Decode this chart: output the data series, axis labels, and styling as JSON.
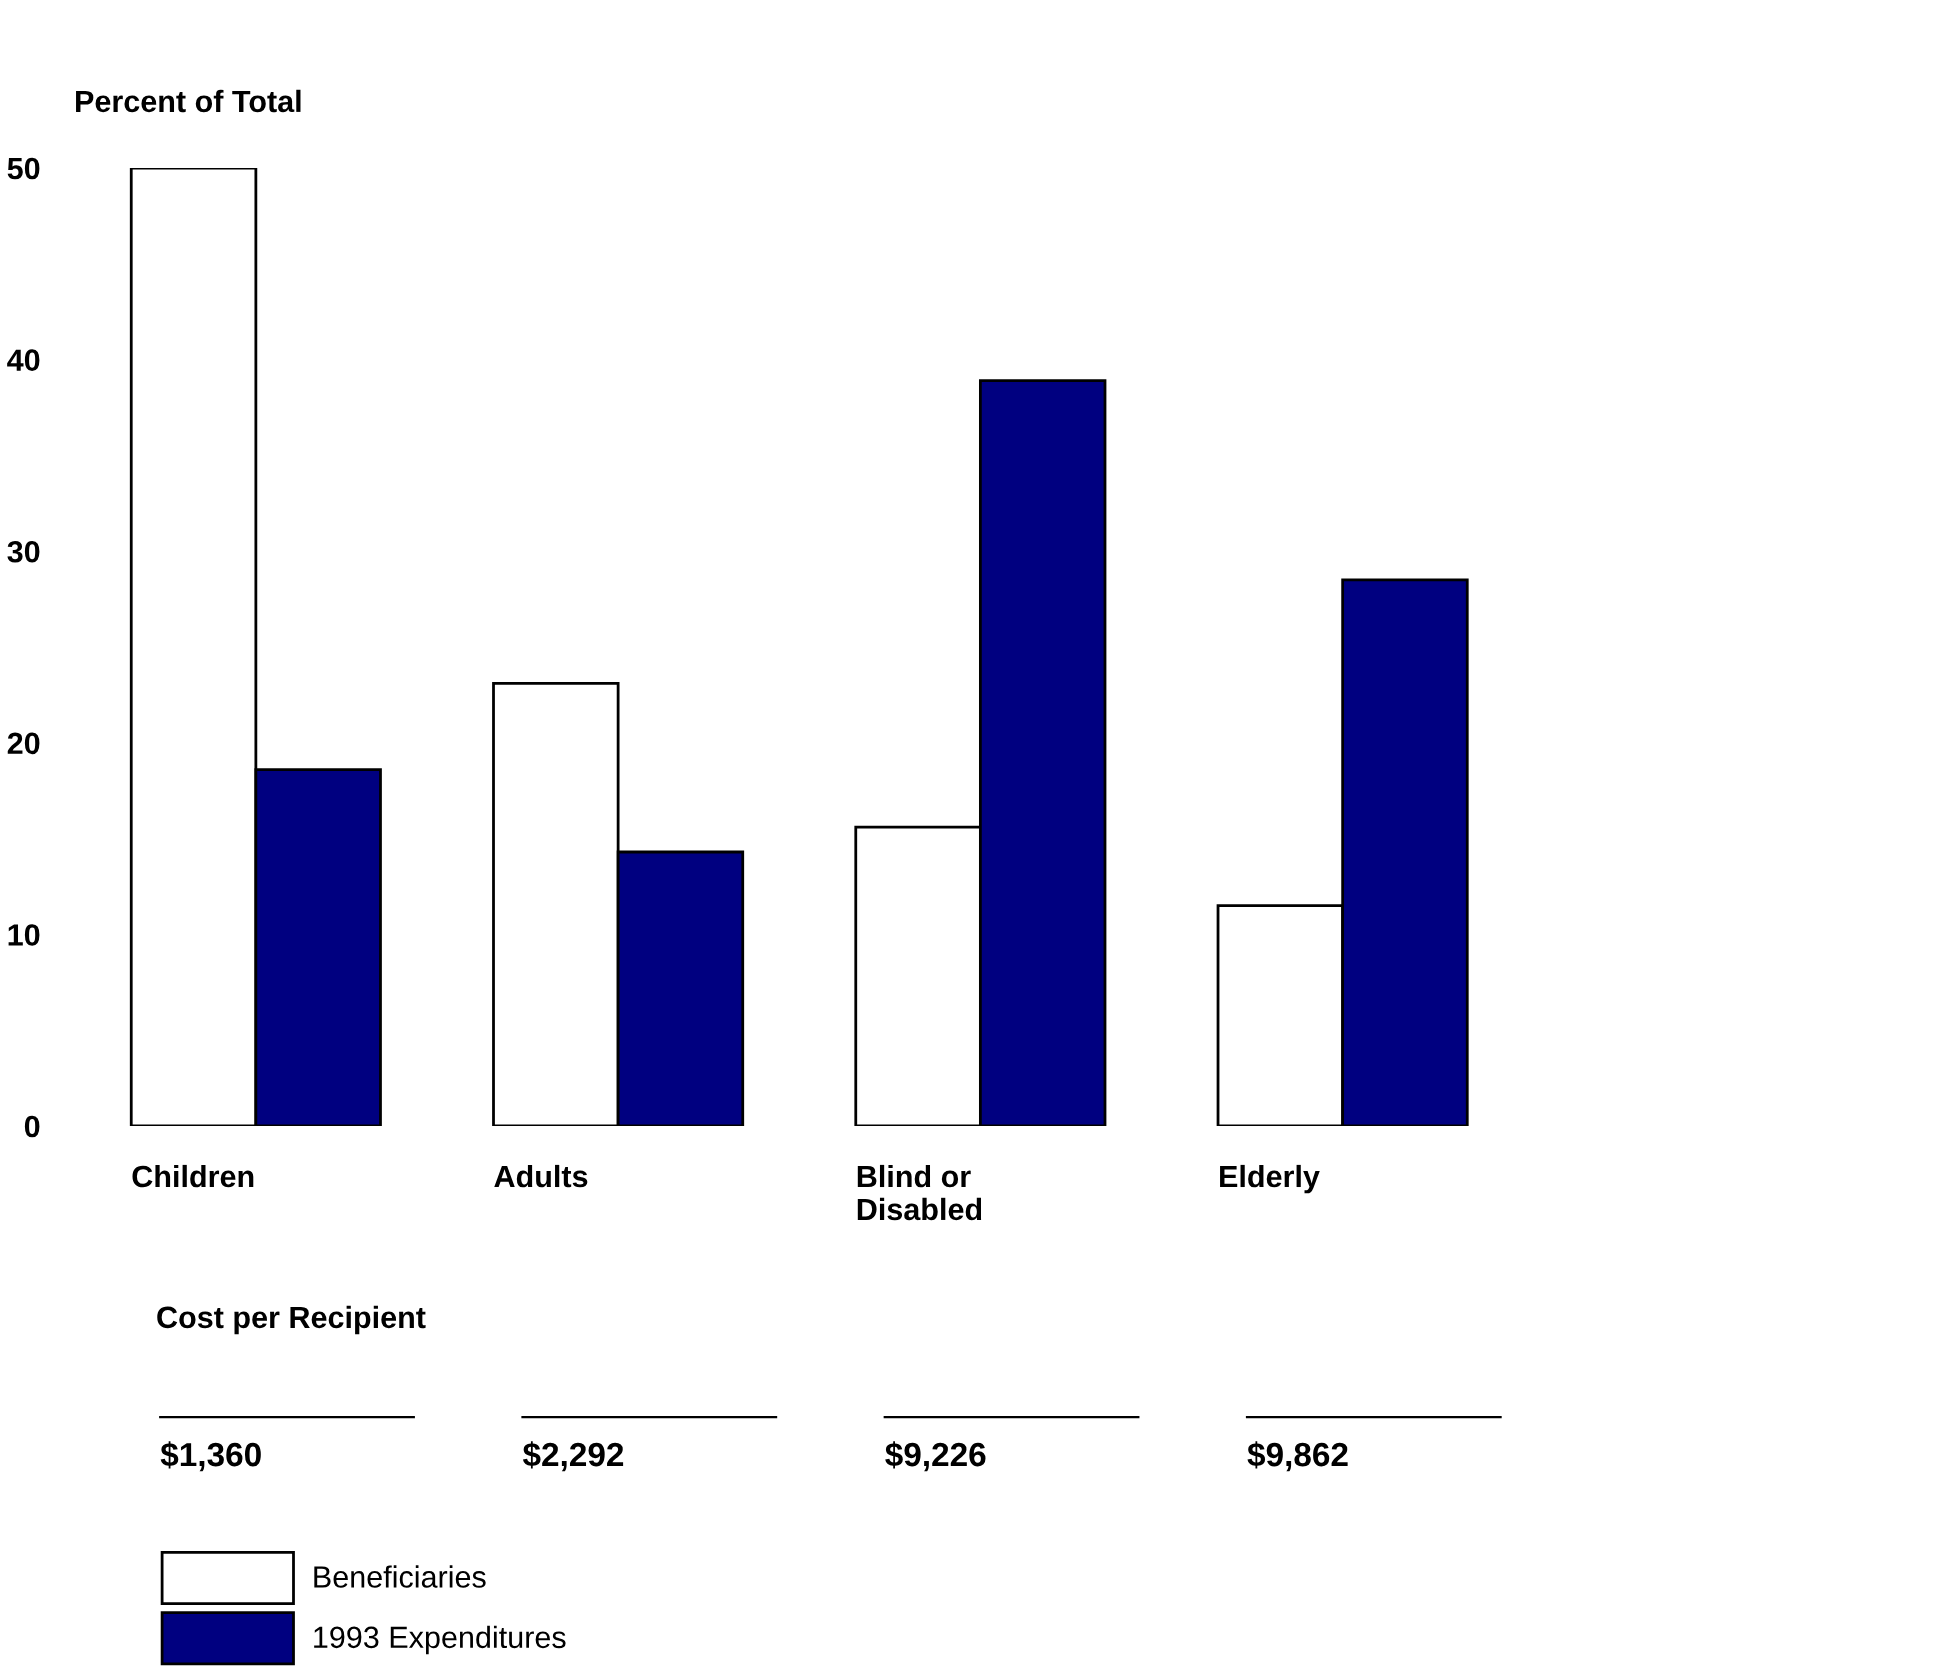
{
  "chart_data": {
    "type": "bar",
    "ylabel": "Percent of Total",
    "categories": [
      "Children",
      "Adults",
      "Blind or\nDisabled",
      "Elderly"
    ],
    "series": [
      {
        "name": "Beneficiaries",
        "color": "#ffffff",
        "values": [
          50,
          23.1,
          15.6,
          11.5
        ]
      },
      {
        "name": "1993 Expenditures",
        "color": "#000080",
        "values": [
          18.6,
          14.3,
          38.9,
          28.5
        ]
      }
    ],
    "ylim": [
      0,
      50
    ],
    "yticks": [
      0,
      10,
      20,
      30,
      40,
      50
    ],
    "annotations": [
      "Cost per Recipient",
      "$1,360",
      "$2,292",
      "$9,226",
      "$9,862"
    ],
    "grid": false,
    "legend": "bottom"
  }
}
